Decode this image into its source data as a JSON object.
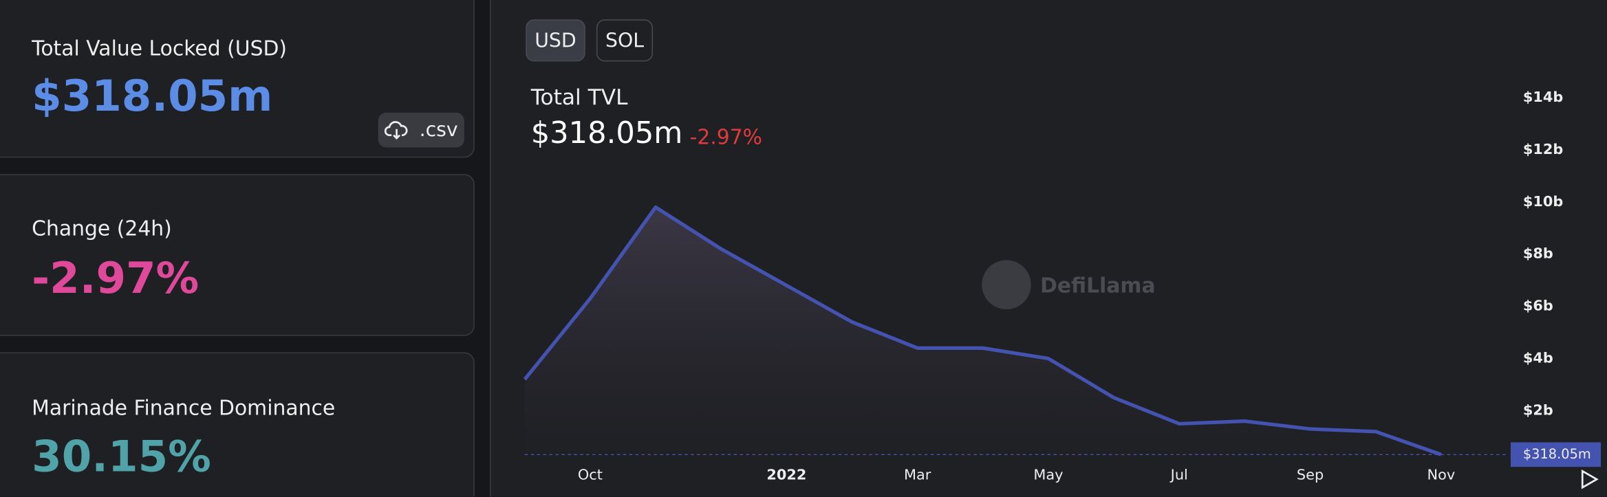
{
  "stats": [
    {
      "label": "Total Value Locked (USD)",
      "value": "$318.05m"
    },
    {
      "label": "Change (24h)",
      "value": "-2.97%"
    },
    {
      "label": "Marinade Finance Dominance",
      "value": "30.15%"
    }
  ],
  "csv_button": ".csv",
  "denomination_buttons": [
    "USD",
    "SOL"
  ],
  "watermark": "DefiLlama",
  "chart_data": {
    "type": "area",
    "title": "Total TVL",
    "headline_value": "$318.05m",
    "headline_change": "-2.97%",
    "x": [
      "2021-09",
      "2021-10",
      "2021-11",
      "2021-12",
      "2022-01",
      "2022-02",
      "2022-03",
      "2022-04",
      "2022-05",
      "2022-06",
      "2022-07",
      "2022-08",
      "2022-09",
      "2022-10",
      "2022-11"
    ],
    "values": [
      3.2,
      6.3,
      9.8,
      8.2,
      6.8,
      5.4,
      4.4,
      4.4,
      4.0,
      2.5,
      1.5,
      1.6,
      1.3,
      1.2,
      0.32
    ],
    "color": "#4452b0",
    "current_value": 0.31805,
    "current_value_label": "$318.05m",
    "xlim": [
      "2021-09",
      "2022-12"
    ],
    "xticks": [
      {
        "value": "2021-10",
        "label": "Oct"
      },
      {
        "value": "2022-01",
        "label": "2022"
      },
      {
        "value": "2022-03",
        "label": "Mar"
      },
      {
        "value": "2022-05",
        "label": "May"
      },
      {
        "value": "2022-07",
        "label": "Jul"
      },
      {
        "value": "2022-09",
        "label": "Sep"
      },
      {
        "value": "2022-11",
        "label": "Nov"
      }
    ],
    "ylim": [
      0,
      14.6
    ],
    "yticks": [
      {
        "value": 2,
        "label": "$2b"
      },
      {
        "value": 4,
        "label": "$4b"
      },
      {
        "value": 6,
        "label": "$6b"
      },
      {
        "value": 8,
        "label": "$8b"
      },
      {
        "value": 10,
        "label": "$10b"
      },
      {
        "value": 12,
        "label": "$12b"
      },
      {
        "value": 14,
        "label": "$14b"
      }
    ]
  }
}
